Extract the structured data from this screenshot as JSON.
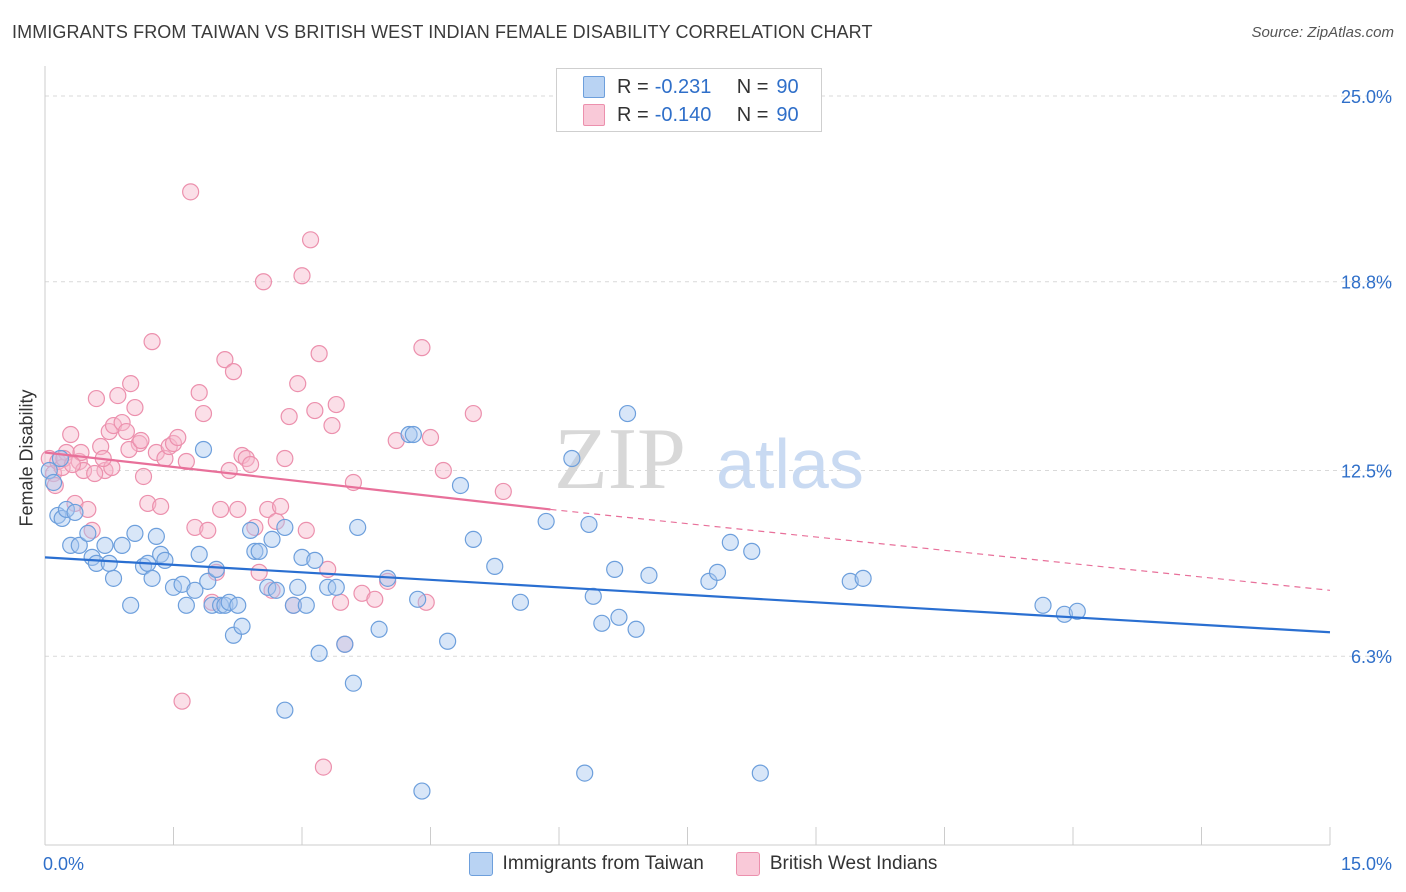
{
  "header": {
    "title": "IMMIGRANTS FROM TAIWAN VS BRITISH WEST INDIAN FEMALE DISABILITY CORRELATION CHART",
    "source": "Source: ZipAtlas.com"
  },
  "watermark": {
    "zip": "ZIP",
    "atlas": "atlas"
  },
  "stats_legend": [
    {
      "r_label": "R =",
      "r_value": "-0.231",
      "n_label": "N =",
      "n_value": "90",
      "color": "#a9c8f0"
    },
    {
      "r_label": "R =",
      "r_value": "-0.140",
      "n_label": "N =",
      "n_value": "90",
      "color": "#f6b8cb"
    }
  ],
  "colors": {
    "blue_fill": "#a9c8f0",
    "blue_stroke": "#6d9fdc",
    "blue_line": "#2a6fd1",
    "pink_fill": "#f6b8cb",
    "pink_stroke": "#ec90ad",
    "pink_line": "#e8709a",
    "tick_label": "#2f6fc9",
    "grid": "#d9d9d9"
  },
  "chart_data": {
    "type": "scatter",
    "title": "IMMIGRANTS FROM TAIWAN VS BRITISH WEST INDIAN FEMALE DISABILITY CORRELATION CHART",
    "xlabel": "",
    "ylabel": "Female Disability",
    "xlim": [
      0,
      15
    ],
    "ylim": [
      0,
      25.6
    ],
    "x_tick_labels": [
      "0.0%",
      "15.0%"
    ],
    "y_ticks": [
      6.3,
      12.5,
      18.8,
      25.0
    ],
    "y_tick_labels": [
      "6.3%",
      "12.5%",
      "18.8%",
      "25.0%"
    ],
    "grid": true,
    "legend_placement": "bottom-center",
    "series": [
      {
        "name": "Immigrants from Taiwan",
        "color": "#a9c8f0",
        "trend": {
          "x": [
            0,
            15
          ],
          "y": [
            9.6,
            7.1
          ]
        },
        "points": [
          [
            0.05,
            12.5
          ],
          [
            0.1,
            12.1
          ],
          [
            0.15,
            11.0
          ],
          [
            0.2,
            10.9
          ],
          [
            0.25,
            11.2
          ],
          [
            0.3,
            10.0
          ],
          [
            0.4,
            10.0
          ],
          [
            0.5,
            10.4
          ],
          [
            0.55,
            9.6
          ],
          [
            0.6,
            9.4
          ],
          [
            0.7,
            10.0
          ],
          [
            0.75,
            9.4
          ],
          [
            0.8,
            8.9
          ],
          [
            0.9,
            10.0
          ],
          [
            1.0,
            8.0
          ],
          [
            1.05,
            10.4
          ],
          [
            1.15,
            9.3
          ],
          [
            1.2,
            9.4
          ],
          [
            1.25,
            8.9
          ],
          [
            1.3,
            10.3
          ],
          [
            1.35,
            9.7
          ],
          [
            1.4,
            9.5
          ],
          [
            1.5,
            8.6
          ],
          [
            1.6,
            8.7
          ],
          [
            1.65,
            8.0
          ],
          [
            1.75,
            8.5
          ],
          [
            1.8,
            9.7
          ],
          [
            1.85,
            13.2
          ],
          [
            1.9,
            8.8
          ],
          [
            1.95,
            8.0
          ],
          [
            2.0,
            9.2
          ],
          [
            2.05,
            8.0
          ],
          [
            2.1,
            8.0
          ],
          [
            2.15,
            8.1
          ],
          [
            2.2,
            7.0
          ],
          [
            2.25,
            8.0
          ],
          [
            2.3,
            7.3
          ],
          [
            2.4,
            10.5
          ],
          [
            2.45,
            9.8
          ],
          [
            2.5,
            9.8
          ],
          [
            2.6,
            8.6
          ],
          [
            2.65,
            10.2
          ],
          [
            2.7,
            8.5
          ],
          [
            2.8,
            4.5
          ],
          [
            2.8,
            10.6
          ],
          [
            2.9,
            8.0
          ],
          [
            2.95,
            8.6
          ],
          [
            3.0,
            9.6
          ],
          [
            3.05,
            8.0
          ],
          [
            3.15,
            9.5
          ],
          [
            3.2,
            6.4
          ],
          [
            3.3,
            8.6
          ],
          [
            3.4,
            8.6
          ],
          [
            3.5,
            6.7
          ],
          [
            3.6,
            5.4
          ],
          [
            3.65,
            10.6
          ],
          [
            3.9,
            7.2
          ],
          [
            4.0,
            8.9
          ],
          [
            4.25,
            13.7
          ],
          [
            4.3,
            13.7
          ],
          [
            4.35,
            8.2
          ],
          [
            4.4,
            1.8
          ],
          [
            4.7,
            6.8
          ],
          [
            4.85,
            12.0
          ],
          [
            5.0,
            10.2
          ],
          [
            5.25,
            9.3
          ],
          [
            5.55,
            8.1
          ],
          [
            5.85,
            10.8
          ],
          [
            6.15,
            12.9
          ],
          [
            6.3,
            2.4
          ],
          [
            6.35,
            10.7
          ],
          [
            6.4,
            8.3
          ],
          [
            6.5,
            7.4
          ],
          [
            6.65,
            9.2
          ],
          [
            6.7,
            7.6
          ],
          [
            6.8,
            14.4
          ],
          [
            6.9,
            7.2
          ],
          [
            7.05,
            9.0
          ],
          [
            7.75,
            8.8
          ],
          [
            7.85,
            9.1
          ],
          [
            8.0,
            10.1
          ],
          [
            8.25,
            9.8
          ],
          [
            8.35,
            2.4
          ],
          [
            9.4,
            8.8
          ],
          [
            9.55,
            8.9
          ],
          [
            11.65,
            8.0
          ],
          [
            11.9,
            7.7
          ],
          [
            12.05,
            7.8
          ],
          [
            0.18,
            12.9
          ],
          [
            0.35,
            11.1
          ]
        ]
      },
      {
        "name": "British West Indians",
        "color": "#f6b8cb",
        "trend": {
          "x": [
            0,
            5.9
          ],
          "y": [
            13.1,
            11.2
          ]
        },
        "trend_dashed": {
          "x": [
            5.9,
            15
          ],
          "y": [
            11.2,
            8.5
          ]
        },
        "points": [
          [
            0.05,
            12.9
          ],
          [
            0.1,
            12.4
          ],
          [
            0.15,
            12.8
          ],
          [
            0.2,
            12.6
          ],
          [
            0.25,
            13.1
          ],
          [
            0.3,
            13.7
          ],
          [
            0.35,
            11.4
          ],
          [
            0.4,
            12.8
          ],
          [
            0.45,
            12.5
          ],
          [
            0.5,
            11.2
          ],
          [
            0.55,
            10.5
          ],
          [
            0.6,
            14.9
          ],
          [
            0.65,
            13.3
          ],
          [
            0.7,
            12.5
          ],
          [
            0.75,
            13.8
          ],
          [
            0.8,
            14.0
          ],
          [
            0.85,
            15.0
          ],
          [
            0.9,
            14.1
          ],
          [
            0.95,
            13.8
          ],
          [
            1.0,
            15.4
          ],
          [
            1.05,
            14.6
          ],
          [
            1.1,
            13.4
          ],
          [
            1.15,
            12.3
          ],
          [
            1.2,
            11.4
          ],
          [
            1.25,
            16.8
          ],
          [
            1.3,
            13.1
          ],
          [
            1.35,
            11.3
          ],
          [
            1.4,
            12.9
          ],
          [
            1.45,
            13.3
          ],
          [
            1.5,
            13.4
          ],
          [
            1.55,
            13.6
          ],
          [
            1.6,
            4.8
          ],
          [
            1.65,
            12.8
          ],
          [
            1.7,
            21.8
          ],
          [
            1.75,
            10.6
          ],
          [
            1.8,
            15.1
          ],
          [
            1.85,
            14.4
          ],
          [
            1.9,
            10.5
          ],
          [
            1.95,
            8.1
          ],
          [
            2.0,
            9.1
          ],
          [
            2.05,
            11.2
          ],
          [
            2.1,
            16.2
          ],
          [
            2.15,
            12.5
          ],
          [
            2.2,
            15.8
          ],
          [
            2.25,
            11.2
          ],
          [
            2.3,
            13.0
          ],
          [
            2.35,
            12.9
          ],
          [
            2.4,
            12.7
          ],
          [
            2.45,
            10.6
          ],
          [
            2.5,
            9.1
          ],
          [
            2.55,
            18.8
          ],
          [
            2.6,
            11.2
          ],
          [
            2.65,
            8.5
          ],
          [
            2.7,
            10.8
          ],
          [
            2.75,
            11.3
          ],
          [
            2.8,
            12.9
          ],
          [
            2.85,
            14.3
          ],
          [
            2.9,
            8.0
          ],
          [
            2.95,
            15.4
          ],
          [
            3.0,
            19.0
          ],
          [
            3.05,
            10.5
          ],
          [
            3.1,
            20.2
          ],
          [
            3.15,
            14.5
          ],
          [
            3.2,
            16.4
          ],
          [
            3.25,
            2.6
          ],
          [
            3.3,
            9.2
          ],
          [
            3.35,
            14.0
          ],
          [
            3.4,
            14.7
          ],
          [
            3.45,
            8.1
          ],
          [
            3.5,
            6.7
          ],
          [
            3.6,
            12.1
          ],
          [
            3.7,
            8.4
          ],
          [
            3.85,
            8.2
          ],
          [
            4.0,
            8.8
          ],
          [
            4.1,
            13.5
          ],
          [
            4.4,
            16.6
          ],
          [
            4.45,
            8.1
          ],
          [
            4.5,
            13.6
          ],
          [
            4.65,
            12.5
          ],
          [
            5.0,
            14.4
          ],
          [
            5.35,
            11.8
          ],
          [
            0.12,
            12.0
          ],
          [
            0.22,
            12.9
          ],
          [
            0.42,
            13.1
          ],
          [
            0.58,
            12.4
          ],
          [
            0.78,
            12.6
          ],
          [
            0.98,
            13.2
          ],
          [
            1.12,
            13.5
          ],
          [
            0.32,
            12.7
          ],
          [
            0.68,
            12.9
          ]
        ]
      }
    ]
  }
}
